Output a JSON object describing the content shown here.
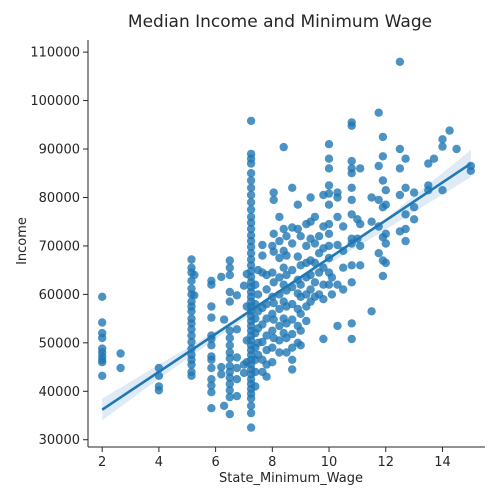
{
  "chart_data": {
    "type": "scatter",
    "title": "Median Income and Minimum Wage",
    "xlabel": "State_Minimum_Wage",
    "ylabel": "Income",
    "xlim": [
      1.5,
      15.5
    ],
    "ylim": [
      28500,
      112500
    ],
    "xticks": [
      2,
      4,
      6,
      8,
      10,
      12,
      14
    ],
    "yticks": [
      30000,
      40000,
      50000,
      60000,
      70000,
      80000,
      90000,
      100000,
      110000
    ],
    "xtick_labels": [
      "2",
      "4",
      "6",
      "8",
      "10",
      "12",
      "14"
    ],
    "ytick_labels": [
      "30000",
      "40000",
      "50000",
      "60000",
      "70000",
      "80000",
      "90000",
      "100000",
      "110000"
    ],
    "grid": false,
    "point_color": "#1f77b4",
    "regression": {
      "x_start": 2.0,
      "x_end": 15.0,
      "y_start": 36200,
      "y_end": 87000,
      "ci": [
        {
          "x": 2.0,
          "low": 34000,
          "high": 38500
        },
        {
          "x": 4.0,
          "low": 42600,
          "high": 45500
        },
        {
          "x": 6.0,
          "low": 50800,
          "high": 52400
        },
        {
          "x": 8.0,
          "low": 58900,
          "high": 59800
        },
        {
          "x": 10.0,
          "low": 66300,
          "high": 67700
        },
        {
          "x": 12.0,
          "low": 73400,
          "high": 75600
        },
        {
          "x": 15.0,
          "low": 84200,
          "high": 89800
        }
      ]
    },
    "points": [
      [
        2,
        59500
      ],
      [
        2,
        54200
      ],
      [
        2,
        52000
      ],
      [
        2,
        51000
      ],
      [
        2,
        48800
      ],
      [
        2,
        48000
      ],
      [
        2,
        47200
      ],
      [
        2,
        46500
      ],
      [
        2,
        46000
      ],
      [
        2,
        43200
      ],
      [
        2.65,
        47800
      ],
      [
        2.65,
        44800
      ],
      [
        4,
        44800
      ],
      [
        4,
        43200
      ],
      [
        4,
        41000
      ],
      [
        4,
        40200
      ],
      [
        5.15,
        67200
      ],
      [
        5.15,
        65500
      ],
      [
        5.15,
        64500
      ],
      [
        5.15,
        62800
      ],
      [
        5.15,
        61200
      ],
      [
        5.15,
        60000
      ],
      [
        5.15,
        58500
      ],
      [
        5.15,
        57500
      ],
      [
        5.15,
        56500
      ],
      [
        5.15,
        55000
      ],
      [
        5.15,
        54000
      ],
      [
        5.15,
        52800
      ],
      [
        5.15,
        51500
      ],
      [
        5.15,
        50200
      ],
      [
        5.15,
        48800
      ],
      [
        5.15,
        47500
      ],
      [
        5.15,
        46500
      ],
      [
        5.15,
        45500
      ],
      [
        5.15,
        44000
      ],
      [
        5.15,
        43200
      ],
      [
        5.25,
        64000
      ],
      [
        5.25,
        59800
      ],
      [
        5.85,
        62800
      ],
      [
        5.85,
        62000
      ],
      [
        5.85,
        57500
      ],
      [
        5.85,
        55200
      ],
      [
        5.85,
        51500
      ],
      [
        5.85,
        50800
      ],
      [
        5.85,
        49500
      ],
      [
        5.85,
        47200
      ],
      [
        5.85,
        46500
      ],
      [
        5.85,
        44800
      ],
      [
        5.85,
        42500
      ],
      [
        5.85,
        41200
      ],
      [
        5.85,
        39800
      ],
      [
        5.85,
        36500
      ],
      [
        6.2,
        63600
      ],
      [
        6.2,
        45000
      ],
      [
        6.2,
        43500
      ],
      [
        6.3,
        54800
      ],
      [
        6.3,
        37000
      ],
      [
        6.5,
        67000
      ],
      [
        6.5,
        65500
      ],
      [
        6.5,
        64000
      ],
      [
        6.5,
        60500
      ],
      [
        6.5,
        58500
      ],
      [
        6.5,
        52500
      ],
      [
        6.5,
        51000
      ],
      [
        6.5,
        49500
      ],
      [
        6.5,
        48000
      ],
      [
        6.5,
        46800
      ],
      [
        6.5,
        45200
      ],
      [
        6.5,
        44000
      ],
      [
        6.5,
        42800
      ],
      [
        6.5,
        41500
      ],
      [
        6.5,
        40200
      ],
      [
        6.5,
        38800
      ],
      [
        6.5,
        35300
      ],
      [
        6.75,
        59800
      ],
      [
        6.75,
        52800
      ],
      [
        6.75,
        47000
      ],
      [
        6.75,
        44800
      ],
      [
        6.75,
        42500
      ],
      [
        6.75,
        39000
      ],
      [
        7.0,
        61800
      ],
      [
        7.0,
        45500
      ],
      [
        7.0,
        43800
      ],
      [
        7.1,
        64200
      ],
      [
        7.1,
        57500
      ],
      [
        7.1,
        50500
      ],
      [
        7.1,
        46000
      ],
      [
        7.25,
        95800
      ],
      [
        7.25,
        89000
      ],
      [
        7.25,
        88000
      ],
      [
        7.25,
        87000
      ],
      [
        7.25,
        85000
      ],
      [
        7.25,
        83500
      ],
      [
        7.25,
        82000
      ],
      [
        7.25,
        80500
      ],
      [
        7.25,
        79000
      ],
      [
        7.25,
        77500
      ],
      [
        7.25,
        76000
      ],
      [
        7.25,
        74800
      ],
      [
        7.25,
        73500
      ],
      [
        7.25,
        72200
      ],
      [
        7.25,
        71000
      ],
      [
        7.25,
        69800
      ],
      [
        7.25,
        68500
      ],
      [
        7.25,
        67200
      ],
      [
        7.25,
        66000
      ],
      [
        7.25,
        64800
      ],
      [
        7.25,
        63600
      ],
      [
        7.25,
        62500
      ],
      [
        7.25,
        61500
      ],
      [
        7.25,
        60500
      ],
      [
        7.25,
        59500
      ],
      [
        7.25,
        58500
      ],
      [
        7.25,
        57500
      ],
      [
        7.25,
        56500
      ],
      [
        7.25,
        55500
      ],
      [
        7.25,
        54500
      ],
      [
        7.25,
        53500
      ],
      [
        7.25,
        52500
      ],
      [
        7.25,
        51500
      ],
      [
        7.25,
        50500
      ],
      [
        7.25,
        49500
      ],
      [
        7.25,
        48500
      ],
      [
        7.25,
        47500
      ],
      [
        7.25,
        46500
      ],
      [
        7.25,
        45500
      ],
      [
        7.25,
        44500
      ],
      [
        7.25,
        43500
      ],
      [
        7.25,
        42500
      ],
      [
        7.25,
        41500
      ],
      [
        7.25,
        40500
      ],
      [
        7.25,
        39500
      ],
      [
        7.25,
        38500
      ],
      [
        7.25,
        37000
      ],
      [
        7.25,
        35500
      ],
      [
        7.25,
        32500
      ],
      [
        7.4,
        62000
      ],
      [
        7.4,
        58000
      ],
      [
        7.4,
        55000
      ],
      [
        7.4,
        52000
      ],
      [
        7.4,
        49000
      ],
      [
        7.4,
        46500
      ],
      [
        7.4,
        44000
      ],
      [
        7.4,
        41000
      ],
      [
        7.5,
        65000
      ],
      [
        7.5,
        60000
      ],
      [
        7.5,
        56500
      ],
      [
        7.5,
        53000
      ],
      [
        7.5,
        50000
      ],
      [
        7.5,
        47500
      ],
      [
        7.65,
        70200
      ],
      [
        7.65,
        68000
      ],
      [
        7.65,
        64500
      ],
      [
        7.65,
        57200
      ],
      [
        7.65,
        53800
      ],
      [
        7.65,
        50200
      ],
      [
        7.65,
        46500
      ],
      [
        7.65,
        44000
      ],
      [
        7.8,
        64000
      ],
      [
        7.8,
        61000
      ],
      [
        7.8,
        58000
      ],
      [
        7.8,
        55000
      ],
      [
        7.8,
        51500
      ],
      [
        7.8,
        48500
      ],
      [
        7.8,
        45500
      ],
      [
        7.8,
        43000
      ],
      [
        8.0,
        70000
      ],
      [
        8.0,
        64500
      ],
      [
        8.0,
        59500
      ],
      [
        8.0,
        56000
      ],
      [
        8.0,
        52500
      ],
      [
        8.0,
        49000
      ],
      [
        8.0,
        46000
      ],
      [
        8.05,
        81000
      ],
      [
        8.05,
        79500
      ],
      [
        8.05,
        72500
      ],
      [
        8.05,
        68800
      ],
      [
        8.05,
        62500
      ],
      [
        8.05,
        58200
      ],
      [
        8.05,
        54800
      ],
      [
        8.05,
        51000
      ],
      [
        8.25,
        76000
      ],
      [
        8.25,
        71000
      ],
      [
        8.25,
        67500
      ],
      [
        8.25,
        63500
      ],
      [
        8.25,
        60000
      ],
      [
        8.25,
        57000
      ],
      [
        8.25,
        53500
      ],
      [
        8.25,
        50500
      ],
      [
        8.25,
        48000
      ],
      [
        8.4,
        90400
      ],
      [
        8.4,
        73500
      ],
      [
        8.4,
        69000
      ],
      [
        8.4,
        65500
      ],
      [
        8.4,
        62000
      ],
      [
        8.4,
        58500
      ],
      [
        8.4,
        55000
      ],
      [
        8.4,
        52000
      ],
      [
        8.5,
        72000
      ],
      [
        8.5,
        68000
      ],
      [
        8.5,
        64000
      ],
      [
        8.5,
        60800
      ],
      [
        8.5,
        57500
      ],
      [
        8.5,
        54000
      ],
      [
        8.5,
        51000
      ],
      [
        8.5,
        48000
      ],
      [
        8.7,
        82000
      ],
      [
        8.7,
        73800
      ],
      [
        8.7,
        70500
      ],
      [
        8.7,
        65000
      ],
      [
        8.7,
        61500
      ],
      [
        8.7,
        58000
      ],
      [
        8.7,
        54800
      ],
      [
        8.7,
        51800
      ],
      [
        8.7,
        49000
      ],
      [
        8.7,
        44500
      ],
      [
        8.7,
        46500
      ],
      [
        8.9,
        78500
      ],
      [
        8.9,
        73500
      ],
      [
        8.9,
        67800
      ],
      [
        8.9,
        63000
      ],
      [
        8.9,
        60200
      ],
      [
        8.9,
        57000
      ],
      [
        8.9,
        53500
      ],
      [
        8.9,
        50000
      ],
      [
        9.0,
        72000
      ],
      [
        9.0,
        66000
      ],
      [
        9.0,
        62000
      ],
      [
        9.0,
        59500
      ],
      [
        9.0,
        56000
      ],
      [
        9.0,
        52500
      ],
      [
        9.0,
        49500
      ],
      [
        9.2,
        74500
      ],
      [
        9.2,
        70000
      ],
      [
        9.2,
        66500
      ],
      [
        9.2,
        63500
      ],
      [
        9.2,
        60000
      ],
      [
        9.2,
        57500
      ],
      [
        9.2,
        54500
      ],
      [
        9.35,
        80000
      ],
      [
        9.35,
        75000
      ],
      [
        9.35,
        71500
      ],
      [
        9.35,
        67000
      ],
      [
        9.35,
        64000
      ],
      [
        9.35,
        61000
      ],
      [
        9.35,
        58500
      ],
      [
        9.5,
        76000
      ],
      [
        9.5,
        70500
      ],
      [
        9.5,
        66500
      ],
      [
        9.5,
        62500
      ],
      [
        9.5,
        59500
      ],
      [
        9.65,
        72000
      ],
      [
        9.65,
        68500
      ],
      [
        9.65,
        64500
      ],
      [
        9.65,
        60000
      ],
      [
        9.8,
        80500
      ],
      [
        9.8,
        74000
      ],
      [
        9.8,
        69500
      ],
      [
        9.8,
        65500
      ],
      [
        9.8,
        62000
      ],
      [
        9.8,
        59000
      ],
      [
        9.8,
        50800
      ],
      [
        10.0,
        91000
      ],
      [
        10.0,
        88000
      ],
      [
        10.0,
        86000
      ],
      [
        10.0,
        82500
      ],
      [
        10.0,
        80800
      ],
      [
        10.0,
        78500
      ],
      [
        10.0,
        74500
      ],
      [
        10.0,
        72500
      ],
      [
        10.0,
        70000
      ],
      [
        10.0,
        67500
      ],
      [
        10.0,
        64500
      ],
      [
        10.0,
        62000
      ],
      [
        10.1,
        63500
      ],
      [
        10.1,
        60000
      ],
      [
        10.3,
        81000
      ],
      [
        10.3,
        80000
      ],
      [
        10.3,
        76000
      ],
      [
        10.3,
        70200
      ],
      [
        10.3,
        62000
      ],
      [
        10.3,
        53500
      ],
      [
        10.5,
        74000
      ],
      [
        10.5,
        69000
      ],
      [
        10.5,
        65500
      ],
      [
        10.5,
        61000
      ],
      [
        10.8,
        95500
      ],
      [
        10.8,
        94800
      ],
      [
        10.8,
        87500
      ],
      [
        10.8,
        86000
      ],
      [
        10.8,
        85000
      ],
      [
        10.8,
        82000
      ],
      [
        10.8,
        79500
      ],
      [
        10.8,
        76500
      ],
      [
        10.8,
        71500
      ],
      [
        10.8,
        70500
      ],
      [
        10.8,
        66000
      ],
      [
        10.8,
        62500
      ],
      [
        10.8,
        54000
      ],
      [
        10.8,
        50800
      ],
      [
        11.0,
        75500
      ],
      [
        11.0,
        71500
      ],
      [
        11.1,
        86000
      ],
      [
        11.1,
        74500
      ],
      [
        11.1,
        70000
      ],
      [
        11.1,
        66000
      ],
      [
        11.5,
        80000
      ],
      [
        11.5,
        75000
      ],
      [
        11.5,
        56500
      ],
      [
        11.75,
        97500
      ],
      [
        11.75,
        86500
      ],
      [
        11.75,
        79500
      ],
      [
        11.75,
        74000
      ],
      [
        11.75,
        68500
      ],
      [
        11.9,
        92500
      ],
      [
        11.9,
        88500
      ],
      [
        11.9,
        83500
      ],
      [
        11.9,
        78000
      ],
      [
        11.9,
        71800
      ],
      [
        11.9,
        67000
      ],
      [
        11.9,
        63800
      ],
      [
        12.0,
        81500
      ],
      [
        12.0,
        78500
      ],
      [
        12.0,
        72500
      ],
      [
        12.0,
        70500
      ],
      [
        12.0,
        66500
      ],
      [
        12.5,
        108000
      ],
      [
        12.5,
        90000
      ],
      [
        12.5,
        86000
      ],
      [
        12.5,
        80500
      ],
      [
        12.5,
        73000
      ],
      [
        12.7,
        88000
      ],
      [
        12.7,
        82000
      ],
      [
        12.7,
        76500
      ],
      [
        12.7,
        73500
      ],
      [
        12.7,
        71000
      ],
      [
        13.0,
        81000
      ],
      [
        13.0,
        78000
      ],
      [
        13.0,
        75500
      ],
      [
        13.5,
        87000
      ],
      [
        13.5,
        82500
      ],
      [
        13.5,
        81500
      ],
      [
        13.7,
        88000
      ],
      [
        14.0,
        92000
      ],
      [
        14.0,
        90500
      ],
      [
        14.0,
        81500
      ],
      [
        14.25,
        93800
      ],
      [
        14.5,
        90000
      ],
      [
        15.0,
        86500
      ],
      [
        15.0,
        85500
      ]
    ]
  }
}
